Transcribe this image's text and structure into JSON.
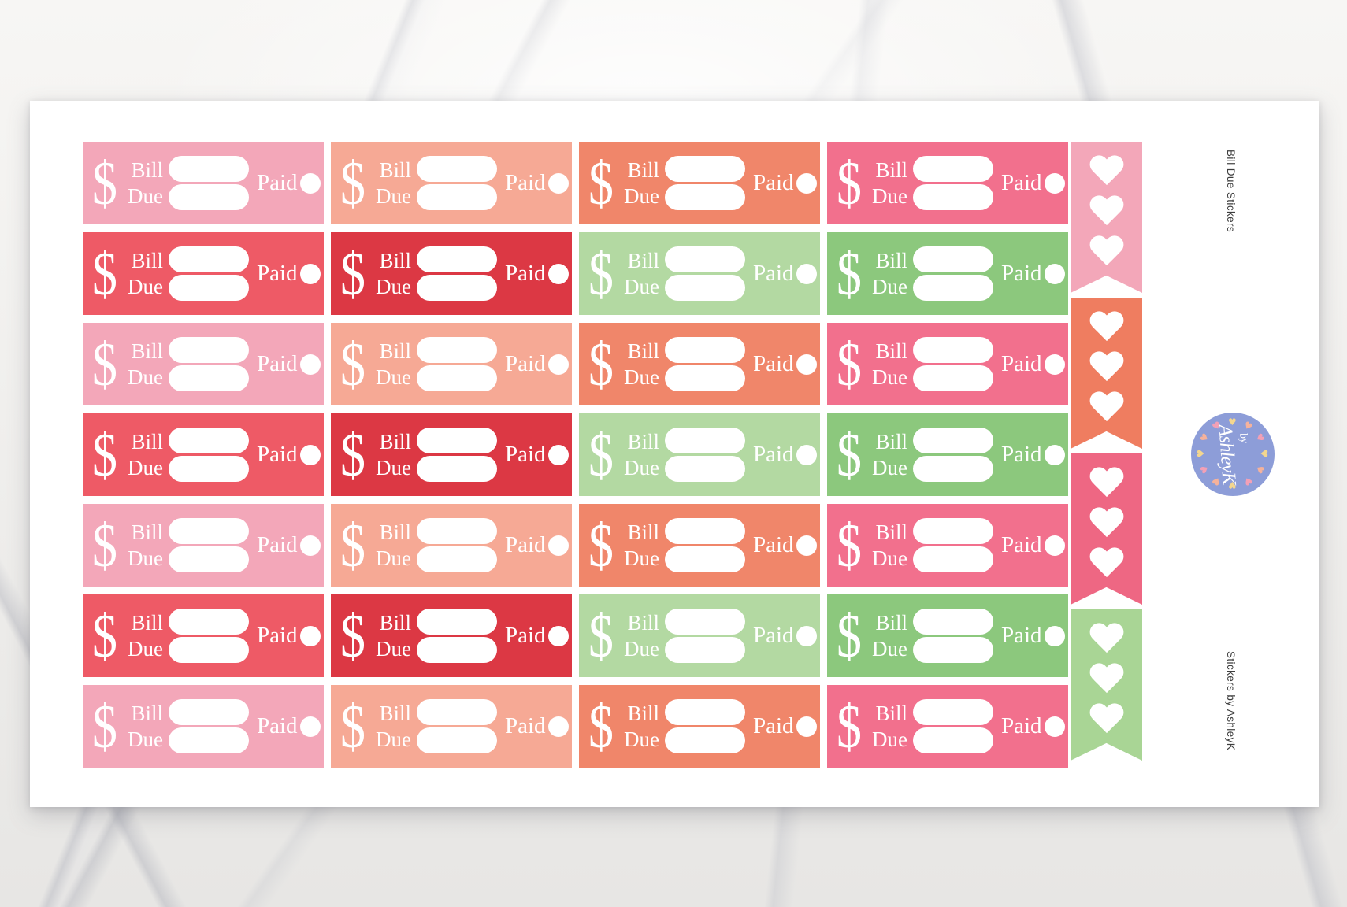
{
  "sheet": {
    "side_label_top": "Bill Due Stickers",
    "side_label_bottom": "Stickers by AshleyK"
  },
  "sticker_template": {
    "dollar_sign": "$",
    "line1": "Bill",
    "line2": "Due",
    "paid_label": "Paid"
  },
  "palette": {
    "pink": "#f3a7b9",
    "salmon": "#f6a995",
    "coral": "#f0866a",
    "rose": "#f2708d",
    "red": "#ee5a66",
    "crimson": "#dc3844",
    "lightgreen": "#b3d9a2",
    "green": "#8cc87d"
  },
  "grid": {
    "columns": 4,
    "rows": [
      [
        "pink",
        "salmon",
        "coral",
        "rose"
      ],
      [
        "red",
        "crimson",
        "lightgreen",
        "green"
      ],
      [
        "pink",
        "salmon",
        "coral",
        "rose"
      ],
      [
        "red",
        "crimson",
        "lightgreen",
        "green"
      ],
      [
        "pink",
        "salmon",
        "coral",
        "rose"
      ],
      [
        "red",
        "crimson",
        "lightgreen",
        "green"
      ],
      [
        "pink",
        "salmon",
        "coral",
        "rose"
      ]
    ]
  },
  "heart_flags": {
    "hearts_per_flag": 3,
    "colors": [
      "#f3a7b9",
      "#ef7d60",
      "#ee6783",
      "#a9d595"
    ]
  },
  "logo": {
    "text_small": "by",
    "text_large": "AshleyK",
    "background": "#8d9dd8",
    "text_color": "#ffffff",
    "hearts_count": 12,
    "heart_colors": [
      "#f3d68f",
      "#f5b29c",
      "#f2a0b6"
    ]
  },
  "icons": {
    "heart_glyph": "♥"
  }
}
